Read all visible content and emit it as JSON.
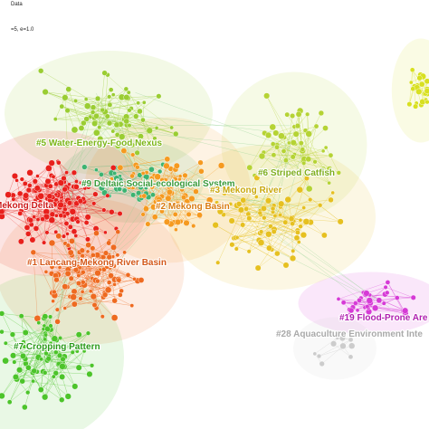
{
  "legend": {
    "line1": "Data",
    "line2": "=5, e=1.0"
  },
  "clusters": [
    {
      "label": "#5 Water-Energy-Food Nexus"
    },
    {
      "label": "#9 Deltaic Social-ecological System"
    },
    {
      "label": "#6 Striped Catfish"
    },
    {
      "label": "#3 Mekong River"
    },
    {
      "label": "#2 Mekong Basin"
    },
    {
      "label": "Mekong Delta"
    },
    {
      "label": "#1 Lancang-Mekong River Basin"
    },
    {
      "label": "#19 Flood-Prone Are"
    },
    {
      "label": "#28 Aquaculture Environment Inte"
    },
    {
      "label": "#7 Cropping Pattern"
    }
  ]
}
